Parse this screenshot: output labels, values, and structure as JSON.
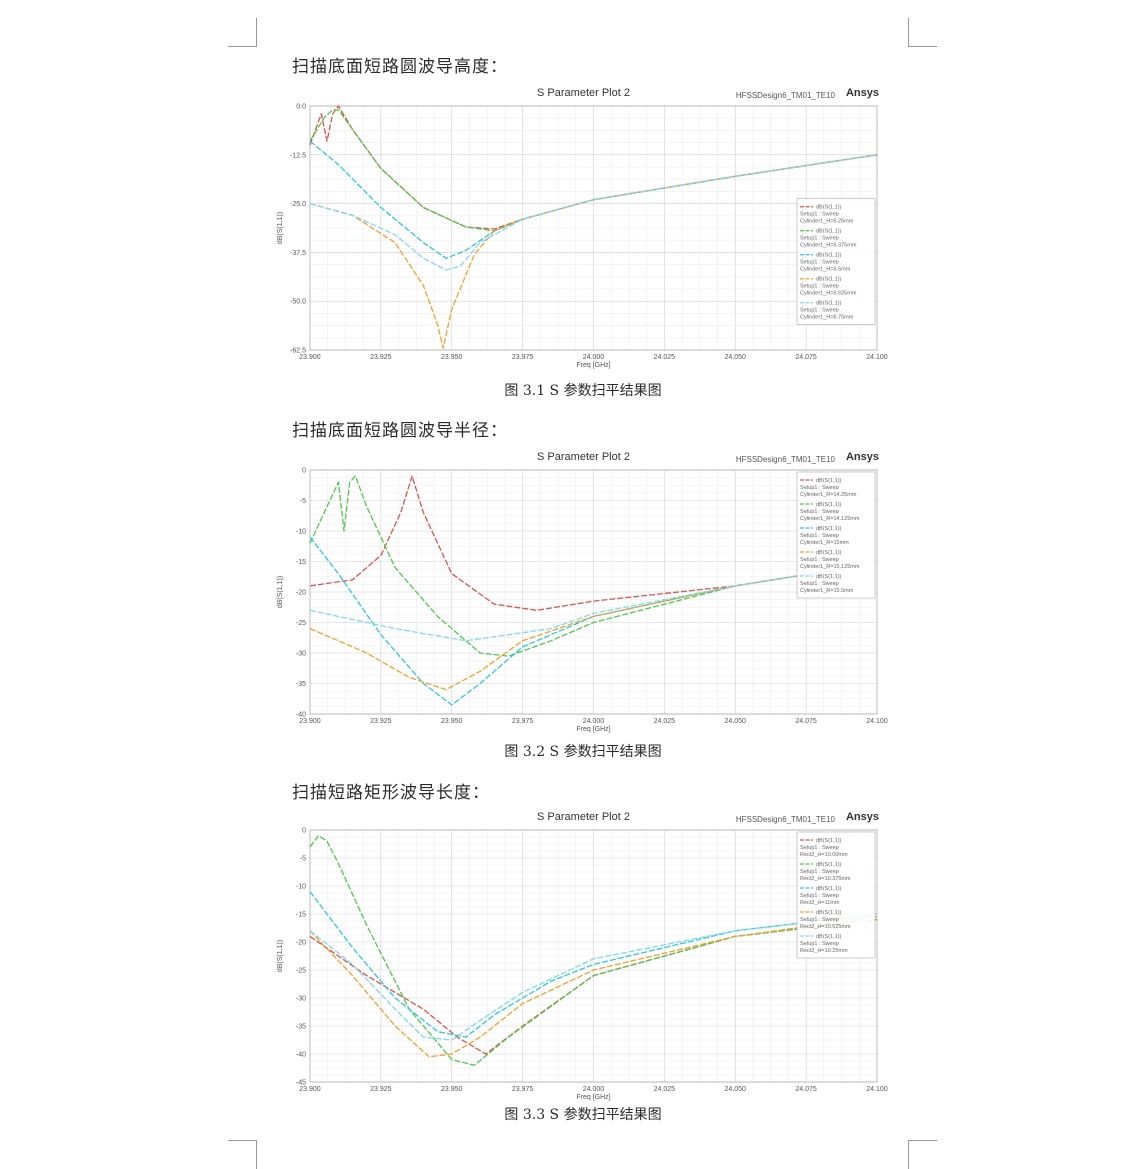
{
  "sections": [
    {
      "heading": "扫描底面短路圆波导高度：",
      "caption": "图 3.1 S 参数扫平结果图",
      "chart_data": {
        "type": "line",
        "title": "S Parameter Plot 2",
        "design": "HFSSDesign6_TM01_TE10",
        "brand": "Ansys",
        "xlabel": "Freq [GHz]",
        "ylabel": "dB(S(1,1))",
        "xlim": [
          23.9,
          24.1
        ],
        "ylim": [
          -62.5,
          0
        ],
        "xticks": [
          "23.900",
          "23.925",
          "23.950",
          "23.975",
          "24.000",
          "24.025",
          "24.050",
          "24.075",
          "24.100"
        ],
        "yticks": [
          "0.0",
          "-12.5",
          "-25.0",
          "-37.5",
          "-50.0",
          "-62.5"
        ],
        "grid": true,
        "legend_position": "right",
        "series": [
          {
            "legend": [
              "dB(S(1,1))",
              "Setup1 : Sweep",
              "Cylinder1_H=6.25mm"
            ],
            "color": "#d9534f",
            "x": [
              23.9,
              23.904,
              23.906,
              23.908,
              23.91,
              23.915,
              23.925,
              23.94,
              23.955,
              23.965,
              23.975,
              24.0,
              24.05,
              24.1
            ],
            "y": [
              -10,
              -2,
              -9,
              -2,
              0,
              -6,
              -16,
              -26,
              -31,
              -31.5,
              -29,
              -24,
              -18,
              -12.5
            ]
          },
          {
            "legend": [
              "dB(S(1,1))",
              "Setup1 : Sweep",
              "Cylinder1_H=6.375mm"
            ],
            "color": "#4cc94c",
            "x": [
              23.9,
              23.905,
              23.908,
              23.91,
              23.915,
              23.925,
              23.94,
              23.955,
              23.965,
              23.975,
              24.0,
              24.05,
              24.1
            ],
            "y": [
              -9,
              -3,
              -1,
              -1,
              -6,
              -16,
              -26,
              -31,
              -32,
              -29,
              -24,
              -18,
              -12.5
            ]
          },
          {
            "legend": [
              "dB(S(1,1))",
              "Setup1 : Sweep",
              "Cylinder1_H=6.5mm"
            ],
            "color": "#33c4e0",
            "x": [
              23.9,
              23.91,
              23.925,
              23.94,
              23.948,
              23.955,
              23.965,
              23.975,
              24.0,
              24.05,
              24.1
            ],
            "y": [
              -9,
              -15,
              -26,
              -35,
              -39,
              -37,
              -32,
              -29,
              -24,
              -18,
              -12.5
            ]
          },
          {
            "legend": [
              "dB(S(1,1))",
              "Setup1 : Sweep",
              "Cylinder1_H=6.625mm"
            ],
            "color": "#f0a030",
            "x": [
              23.9,
              23.915,
              23.93,
              23.94,
              23.945,
              23.947,
              23.95,
              23.958,
              23.965,
              23.975,
              24.0,
              24.05,
              24.1
            ],
            "y": [
              -25,
              -28,
              -35,
              -46,
              -56,
              -62,
              -52,
              -38,
              -32,
              -29,
              -24,
              -18,
              -12.5
            ]
          },
          {
            "legend": [
              "dB(S(1,1))",
              "Setup1 : Sweep",
              "Cylinder1_H=6.75mm"
            ],
            "color": "#80d8ee",
            "x": [
              23.9,
              23.915,
              23.93,
              23.94,
              23.948,
              23.953,
              23.96,
              23.975,
              24.0,
              24.05,
              24.1
            ],
            "y": [
              -25,
              -28,
              -33,
              -39,
              -42,
              -41,
              -35,
              -29,
              -24,
              -18,
              -12.5
            ]
          }
        ]
      }
    },
    {
      "heading": "扫描底面短路圆波导半径：",
      "caption": "图 3.2 S 参数扫平结果图",
      "chart_data": {
        "type": "line",
        "title": "S Parameter Plot 2",
        "design": "HFSSDesign6_TM01_TE10",
        "brand": "Ansys",
        "xlabel": "Freq [GHz]",
        "ylabel": "dB(S(1,1))",
        "xlim": [
          23.9,
          24.1
        ],
        "ylim": [
          -40,
          0
        ],
        "xticks": [
          "23.900",
          "23.925",
          "23.950",
          "23.975",
          "24.000",
          "24.025",
          "24.050",
          "24.075",
          "24.100"
        ],
        "yticks": [
          "0",
          "-5",
          "-10",
          "-15",
          "-20",
          "-25",
          "-30",
          "-35",
          "-40"
        ],
        "grid": true,
        "legend_position": "top-right",
        "series": [
          {
            "legend": [
              "dB(S(1,1))",
              "Setup1 : Sweep",
              "Cylinder1_R=14.25mm"
            ],
            "color": "#d9534f",
            "x": [
              23.9,
              23.915,
              23.925,
              23.932,
              23.936,
              23.94,
              23.95,
              23.965,
              23.98,
              24.0,
              24.05,
              24.09
            ],
            "y": [
              -19,
              -18,
              -14,
              -7,
              -1,
              -7,
              -17,
              -22,
              -23,
              -21.5,
              -19,
              -16
            ]
          },
          {
            "legend": [
              "dB(S(1,1))",
              "Setup1 : Sweep",
              "Cylinder1_R=14.125mm"
            ],
            "color": "#4cc94c",
            "x": [
              23.9,
              23.906,
              23.91,
              23.912,
              23.914,
              23.916,
              23.92,
              23.93,
              23.945,
              23.96,
              23.97,
              23.985,
              24.0,
              24.05,
              24.09
            ],
            "y": [
              -12,
              -6,
              -2,
              -10,
              -2,
              -1,
              -6,
              -16,
              -24,
              -30,
              -30.5,
              -28,
              -25,
              -19,
              -16
            ]
          },
          {
            "legend": [
              "dB(S(1,1))",
              "Setup1 : Sweep",
              "Cylinder1_R=15mm"
            ],
            "color": "#33c4e0",
            "x": [
              23.9,
              23.91,
              23.925,
              23.94,
              23.95,
              23.96,
              23.975,
              24.0,
              24.05,
              24.09
            ],
            "y": [
              -11,
              -17,
              -27,
              -35,
              -38.5,
              -35,
              -29,
              -24,
              -19,
              -16
            ]
          },
          {
            "legend": [
              "dB(S(1,1))",
              "Setup1 : Sweep",
              "Cylinder1_R=15.125mm"
            ],
            "color": "#f0a030",
            "x": [
              23.9,
              23.92,
              23.935,
              23.948,
              23.96,
              23.975,
              24.0,
              24.05,
              24.09
            ],
            "y": [
              -26,
              -30,
              -34,
              -36,
              -33,
              -28,
              -24,
              -19,
              -16
            ]
          },
          {
            "legend": [
              "dB(S(1,1))",
              "Setup1 : Sweep",
              "Cylinder1_R=15.5mm"
            ],
            "color": "#80d8ee",
            "x": [
              23.9,
              23.93,
              23.955,
              23.97,
              23.985,
              24.0,
              24.05,
              24.09
            ],
            "y": [
              -23,
              -26,
              -28,
              -27,
              -26,
              -23.5,
              -19,
              -16
            ]
          }
        ]
      }
    },
    {
      "heading": "扫描短路矩形波导长度：",
      "caption": "图 3.3 S 参数扫平结果图",
      "chart_data": {
        "type": "line",
        "title": "S Parameter Plot 2",
        "design": "HFSSDesign6_TM01_TE10",
        "brand": "Ansys",
        "xlabel": "Freq [GHz]",
        "ylabel": "dB(S(1,1))",
        "xlim": [
          23.9,
          24.1
        ],
        "ylim": [
          -45,
          0
        ],
        "xticks": [
          "23.900",
          "23.925",
          "23.950",
          "23.975",
          "24.000",
          "24.025",
          "24.050",
          "24.075",
          "24.100"
        ],
        "yticks": [
          "0",
          "-5",
          "-10",
          "-15",
          "-20",
          "-25",
          "-30",
          "-35",
          "-40",
          "-45"
        ],
        "grid": true,
        "legend_position": "top-right",
        "series": [
          {
            "legend": [
              "dB(S(1,1))",
              "Setup1 : Sweep",
              "Rect2_H=10.00mm"
            ],
            "color": "#d9534f",
            "x": [
              23.9,
              23.92,
              23.94,
              23.952,
              23.962,
              23.975,
              24.0,
              24.05,
              24.1
            ],
            "y": [
              -19,
              -26,
              -32,
              -37,
              -40,
              -35,
              -26,
              -19,
              -16
            ]
          },
          {
            "legend": [
              "dB(S(1,1))",
              "Setup1 : Sweep",
              "Rect2_H=10.375mm"
            ],
            "color": "#4cc94c",
            "x": [
              23.9,
              23.903,
              23.906,
              23.91,
              23.92,
              23.935,
              23.95,
              23.958,
              23.97,
              24.0,
              24.05,
              24.1
            ],
            "y": [
              -3,
              -1,
              -2,
              -6,
              -17,
              -32,
              -41,
              -42,
              -37,
              -26,
              -19,
              -16
            ]
          },
          {
            "legend": [
              "dB(S(1,1))",
              "Setup1 : Sweep",
              "Rect2_H=11mm"
            ],
            "color": "#33c4e0",
            "x": [
              23.9,
              23.915,
              23.93,
              23.945,
              23.955,
              23.965,
              23.985,
              24.0,
              24.05,
              24.1
            ],
            "y": [
              -11,
              -21,
              -30,
              -36,
              -37,
              -33,
              -27,
              -24,
              -18,
              -15
            ]
          },
          {
            "legend": [
              "dB(S(1,1))",
              "Setup1 : Sweep",
              "Rect2_H=10.625mm"
            ],
            "color": "#f0a030",
            "x": [
              23.9,
              23.915,
              23.93,
              23.942,
              23.95,
              23.96,
              23.975,
              24.0,
              24.05,
              24.1
            ],
            "y": [
              -18,
              -26,
              -35,
              -40.5,
              -40,
              -37,
              -31,
              -25,
              -19,
              -15.5
            ]
          },
          {
            "legend": [
              "dB(S(1,1))",
              "Setup1 : Sweep",
              "Rect2_H=10.25mm"
            ],
            "color": "#80d8ee",
            "x": [
              23.9,
              23.915,
              23.93,
              23.94,
              23.95,
              23.96,
              23.975,
              24.0,
              24.05,
              24.1
            ],
            "y": [
              -18,
              -24,
              -32,
              -37,
              -37.5,
              -34,
              -29,
              -23,
              -18,
              -15
            ]
          }
        ]
      }
    }
  ]
}
